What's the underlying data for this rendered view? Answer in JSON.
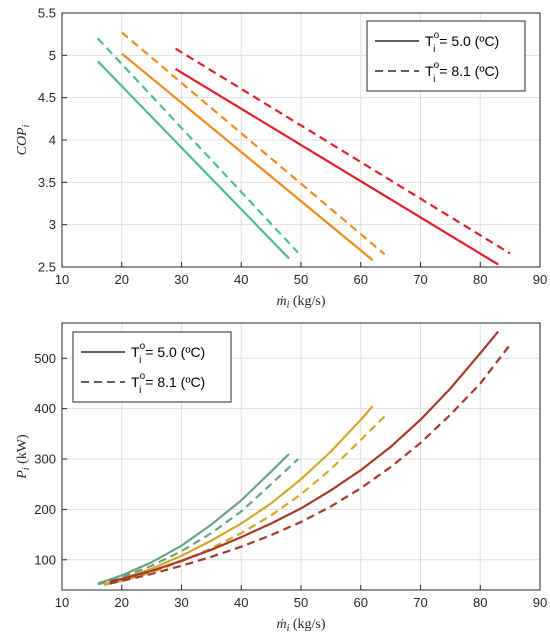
{
  "chart_data": [
    {
      "type": "line",
      "xlabel": "ṁ",
      "xlabel_sub": "i",
      "xlabel_unit": "(kg/s)",
      "ylabel": "COP",
      "ylabel_sub": "i",
      "xlim": [
        10,
        90
      ],
      "ylim": [
        2.5,
        5.5
      ],
      "xticks": [
        10,
        20,
        30,
        40,
        50,
        60,
        70,
        80,
        90
      ],
      "yticks": [
        2.5,
        3,
        3.5,
        4,
        4.5,
        5,
        5.5
      ],
      "ytick_labels": [
        "2.5",
        "3",
        "3.5",
        "4",
        "4.5",
        "5",
        "5.5"
      ],
      "grid": true,
      "legend_position": "top-right",
      "legend": [
        {
          "style": "solid",
          "prefix": "T",
          "sup": "o",
          "sub": "i",
          "text": " = 5.0 (ºC)"
        },
        {
          "style": "dashed",
          "prefix": "T",
          "sup": "o",
          "sub": "i",
          "text": " = 8.1 (ºC)"
        }
      ],
      "series": [
        {
          "color": "#4dbe8a",
          "style": "solid",
          "x": [
            16,
            48
          ],
          "y": [
            4.93,
            2.6
          ]
        },
        {
          "color": "#4dbe8a",
          "style": "dashed",
          "x": [
            16,
            49.5
          ],
          "y": [
            5.2,
            2.67
          ]
        },
        {
          "color": "#f08a1c",
          "style": "solid",
          "x": [
            20,
            62
          ],
          "y": [
            5.02,
            2.58
          ]
        },
        {
          "color": "#f08a1c",
          "style": "dashed",
          "x": [
            20,
            64
          ],
          "y": [
            5.27,
            2.65
          ]
        },
        {
          "color": "#e0202a",
          "style": "solid",
          "x": [
            29,
            83
          ],
          "y": [
            4.84,
            2.53
          ]
        },
        {
          "color": "#e0202a",
          "style": "dashed",
          "x": [
            29,
            85
          ],
          "y": [
            5.08,
            2.66
          ]
        }
      ]
    },
    {
      "type": "line",
      "xlabel": "ṁ",
      "xlabel_sub": "i",
      "xlabel_unit": "(kg/s)",
      "ylabel": "P",
      "ylabel_sub": "i",
      "ylabel_unit": "(kW)",
      "xlim": [
        10,
        90
      ],
      "ylim": [
        40,
        570
      ],
      "xticks": [
        10,
        20,
        30,
        40,
        50,
        60,
        70,
        80,
        90
      ],
      "yticks": [
        100,
        200,
        300,
        400,
        500
      ],
      "ytick_labels": [
        "100",
        "200",
        "300",
        "400",
        "500"
      ],
      "grid": true,
      "legend_position": "top-left",
      "legend": [
        {
          "style": "solid",
          "prefix": "T",
          "sup": "o",
          "sub": "i",
          "text": " = 5.0 (ºC)"
        },
        {
          "style": "dashed",
          "prefix": "T",
          "sup": "o",
          "sub": "i",
          "text": " = 8.1 (ºC)"
        }
      ],
      "series": [
        {
          "color": "#6aa383",
          "style": "solid",
          "x": [
            16,
            20,
            25,
            30,
            35,
            40,
            45,
            48
          ],
          "y": [
            53,
            69,
            95,
            128,
            170,
            218,
            275,
            310
          ]
        },
        {
          "color": "#6aa383",
          "style": "dashed",
          "x": [
            16,
            20,
            25,
            30,
            35,
            40,
            45,
            49.5
          ],
          "y": [
            51,
            65,
            88,
            117,
            153,
            196,
            250,
            300
          ]
        },
        {
          "color": "#d4a72c",
          "style": "solid",
          "x": [
            17,
            20,
            25,
            30,
            35,
            40,
            45,
            50,
            55,
            60,
            62
          ],
          "y": [
            52,
            62,
            82,
            108,
            138,
            172,
            212,
            260,
            315,
            378,
            405
          ]
        },
        {
          "color": "#d4a72c",
          "style": "dashed",
          "x": [
            17,
            20,
            25,
            30,
            35,
            40,
            45,
            50,
            55,
            60,
            64
          ],
          "y": [
            50,
            58,
            75,
            97,
            123,
            153,
            188,
            230,
            280,
            338,
            385
          ]
        },
        {
          "color": "#a33a2a",
          "style": "solid",
          "x": [
            18,
            20,
            25,
            30,
            35,
            40,
            45,
            50,
            55,
            60,
            65,
            70,
            75,
            80,
            83
          ],
          "y": [
            57,
            62,
            78,
            98,
            120,
            145,
            172,
            202,
            238,
            278,
            324,
            378,
            440,
            510,
            553
          ]
        },
        {
          "color": "#a33a2a",
          "style": "dashed",
          "x": [
            18,
            20,
            25,
            30,
            35,
            40,
            45,
            50,
            55,
            60,
            65,
            70,
            75,
            80,
            85
          ],
          "y": [
            53,
            58,
            72,
            88,
            106,
            126,
            149,
            175,
            206,
            242,
            284,
            332,
            388,
            450,
            527
          ]
        }
      ]
    }
  ]
}
